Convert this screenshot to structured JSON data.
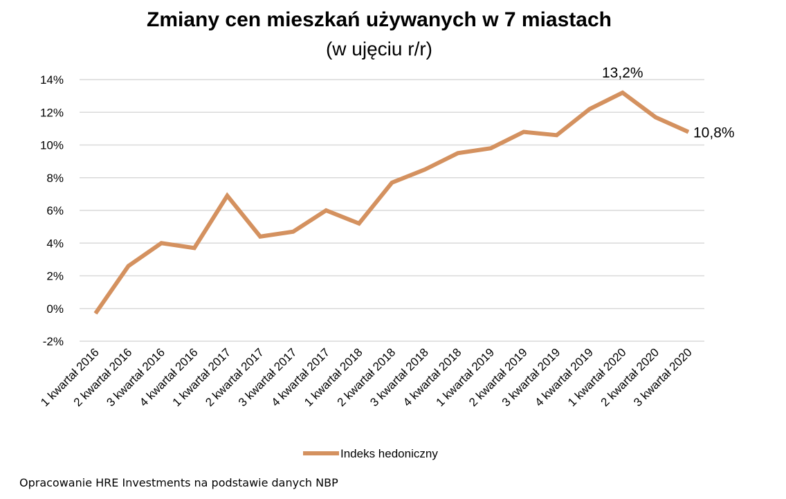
{
  "chart_data": {
    "type": "line",
    "title": "Zmiany cen mieszkań używanych w 7 miastach",
    "subtitle": "(w ujęciu r/r)",
    "xlabel": "",
    "ylabel": "",
    "categories": [
      "1 kwartał 2016",
      "2 kwartał 2016",
      "3 kwartał 2016",
      "4 kwartał 2016",
      "1 kwartał 2017",
      "2 kwartał 2017",
      "3 kwartał 2017",
      "4 kwartał 2017",
      "1 kwartał 2018",
      "2 kwartał 2018",
      "3 kwartał 2018",
      "4 kwartał 2018",
      "1 kwartał 2019",
      "2 kwartał 2019",
      "3 kwartał 2019",
      "4 kwartał 2019",
      "1 kwartał 2020",
      "2 kwartał 2020",
      "3 kwartał 2020"
    ],
    "series": [
      {
        "name": "Indeks hedoniczny",
        "color": "#d4915f",
        "values": [
          -0.3,
          2.6,
          4.0,
          3.7,
          6.9,
          4.4,
          4.7,
          6.0,
          5.2,
          7.7,
          8.5,
          9.5,
          9.8,
          10.8,
          10.6,
          12.2,
          13.2,
          11.7,
          10.8
        ]
      }
    ],
    "ylim": [
      -2,
      14
    ],
    "yticks": [
      -2,
      0,
      2,
      4,
      6,
      8,
      10,
      12,
      14
    ],
    "ytick_labels": [
      "-2%",
      "0%",
      "2%",
      "4%",
      "6%",
      "8%",
      "10%",
      "12%",
      "14%"
    ],
    "annotations": [
      {
        "index": 16,
        "text": "13,2%"
      },
      {
        "index": 18,
        "text": "10,8%"
      }
    ],
    "grid": true,
    "legend": "bottom"
  },
  "source": "Opracowanie HRE Investments na podstawie danych NBP"
}
